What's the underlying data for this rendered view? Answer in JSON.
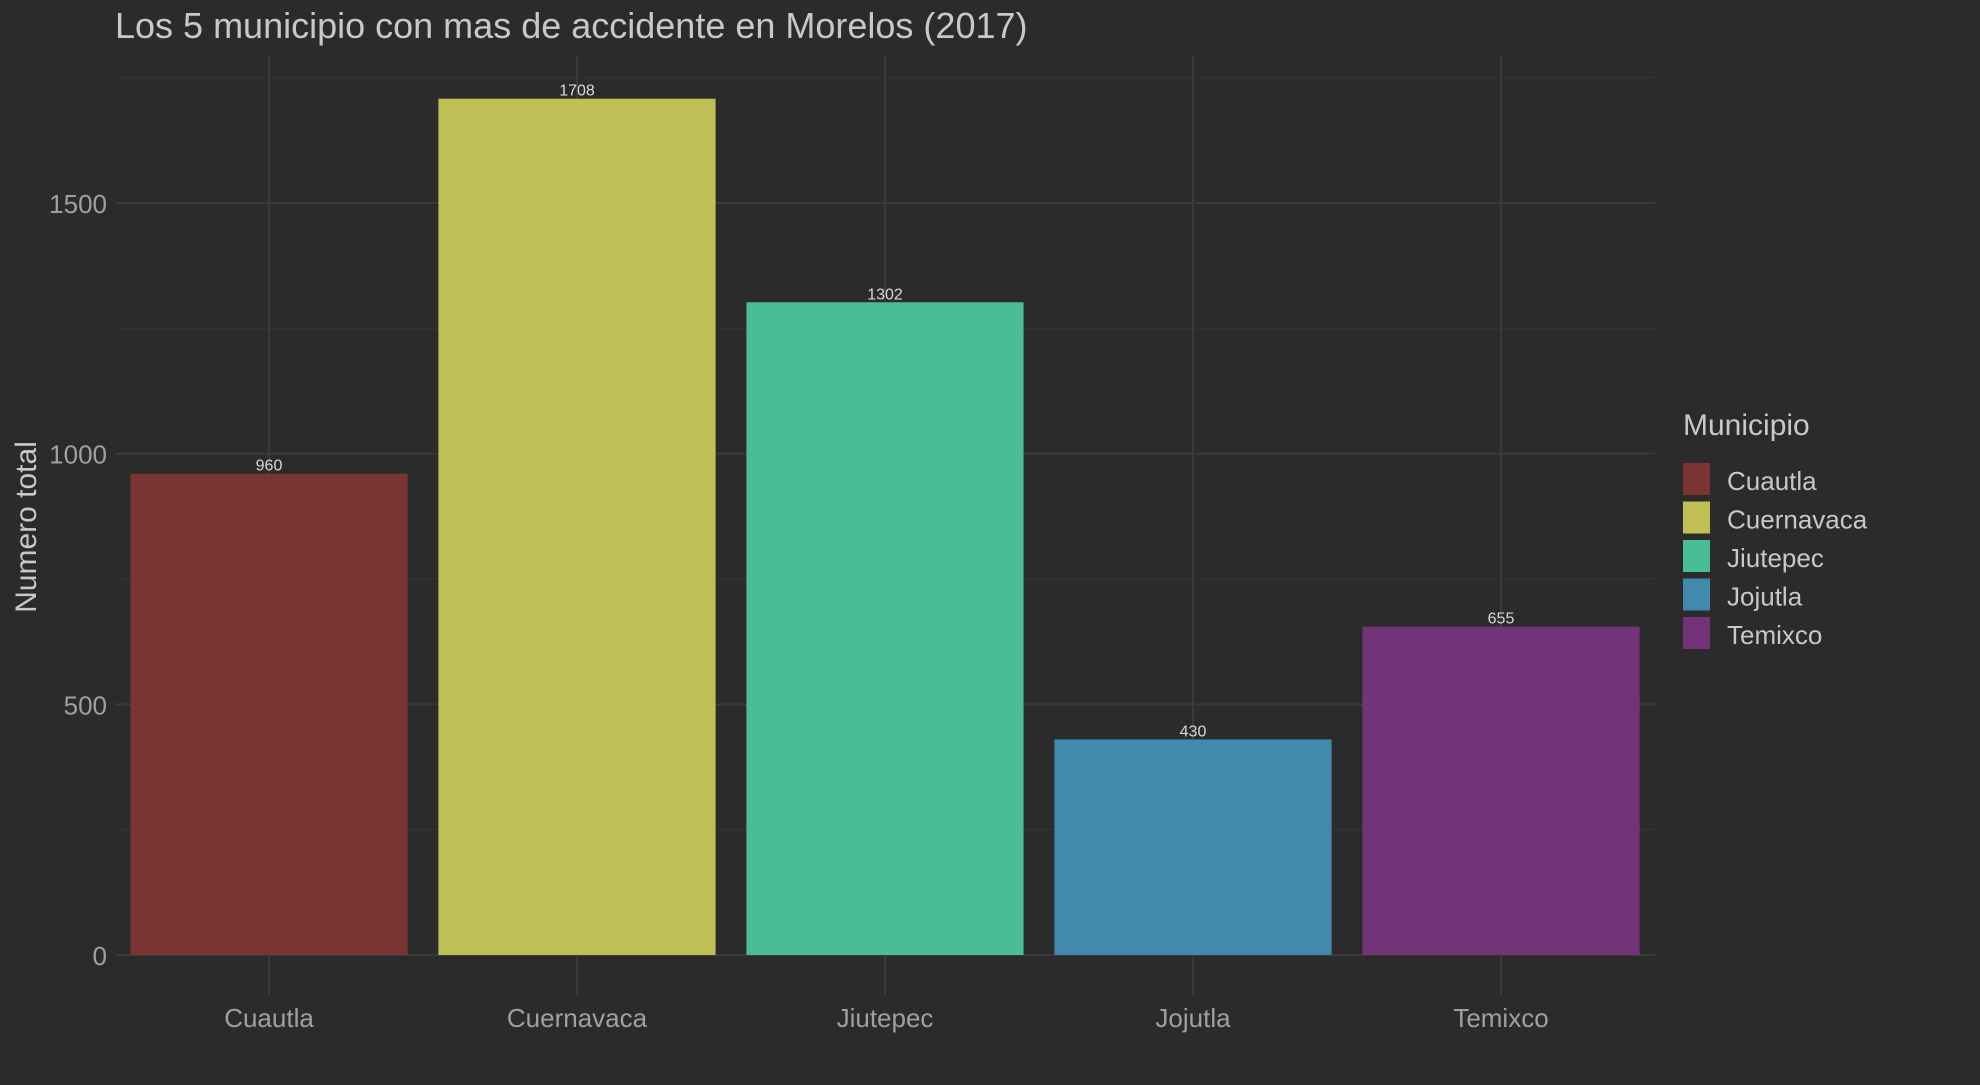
{
  "chart_data": {
    "type": "bar",
    "title": "Los 5 municipio con mas de accidente en Morelos  (2017)",
    "xlabel": "",
    "ylabel": "Numero total",
    "categories": [
      "Cuautla",
      "Cuernavaca",
      "Jiutepec",
      "Jojutla",
      "Temixco"
    ],
    "values": [
      960,
      1708,
      1302,
      430,
      655
    ],
    "data_labels": [
      "960",
      "1708",
      "1302",
      "430",
      "655"
    ],
    "colors": [
      "#7a3532",
      "#bfbf55",
      "#49bd95",
      "#3f8aad",
      "#733378"
    ],
    "ylim": [
      0,
      1750
    ],
    "yticks": [
      0,
      500,
      1000,
      1500
    ],
    "ytick_labels": [
      "0",
      "500",
      "1000",
      "1500"
    ],
    "grid": true,
    "legend": {
      "title": "Municipio",
      "position": "right",
      "entries": [
        "Cuautla",
        "Cuernavaca",
        "Jiutepec",
        "Jojutla",
        "Temixco"
      ]
    },
    "theme": {
      "background": "#2b2b2b",
      "grid_major": "#3a3a3a",
      "grid_minor": "#323232",
      "text": "#c8c8c8",
      "tick_text": "#a0a0a0"
    }
  }
}
